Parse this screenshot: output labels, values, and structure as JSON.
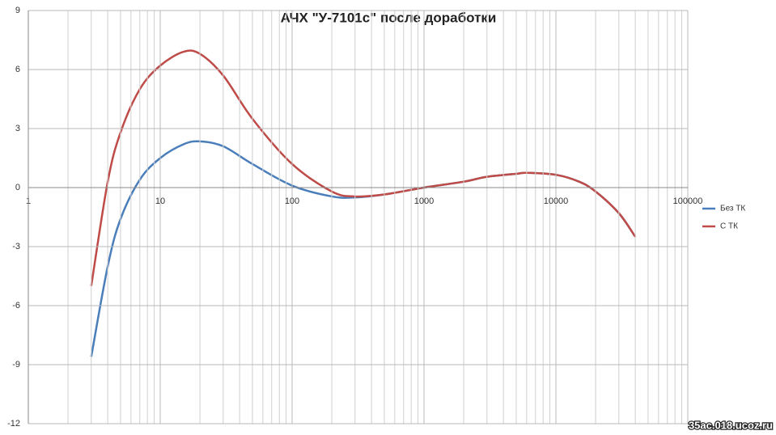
{
  "chart_data": {
    "type": "line",
    "title": "АЧХ  \"У-7101с\" после доработки",
    "x": [
      3,
      4,
      5,
      7,
      10,
      15,
      20,
      30,
      50,
      100,
      200,
      300,
      500,
      1000,
      2000,
      3000,
      5000,
      6000,
      10000,
      15000,
      20000,
      30000,
      40000
    ],
    "series": [
      {
        "name": "Без ТК",
        "color": "#4a7ebb",
        "values": [
          -8.6,
          -4.0,
          -1.6,
          0.4,
          1.5,
          2.2,
          2.35,
          2.1,
          1.2,
          0.1,
          -0.45,
          -0.5,
          -0.35,
          0,
          0.3,
          0.55,
          0.7,
          0.75,
          0.65,
          0.3,
          -0.2,
          -1.3,
          -2.5
        ]
      },
      {
        "name": "С ТК",
        "color": "#be4b48",
        "values": [
          -5.0,
          0.3,
          2.8,
          5.0,
          6.2,
          6.9,
          6.8,
          5.7,
          3.5,
          1.2,
          -0.2,
          -0.45,
          -0.35,
          0,
          0.3,
          0.55,
          0.7,
          0.75,
          0.65,
          0.3,
          -0.2,
          -1.3,
          -2.5
        ]
      }
    ],
    "xlim": [
      1,
      100000
    ],
    "xticks": [
      1,
      10,
      100,
      1000,
      10000,
      100000
    ],
    "xscale": "log",
    "ylim": [
      -12,
      9
    ],
    "yticks": [
      -12,
      -9,
      -6,
      -3,
      0,
      3,
      6,
      9
    ],
    "grid": true,
    "legend": "right",
    "watermark": "35ac.018.ucoz.ru"
  }
}
